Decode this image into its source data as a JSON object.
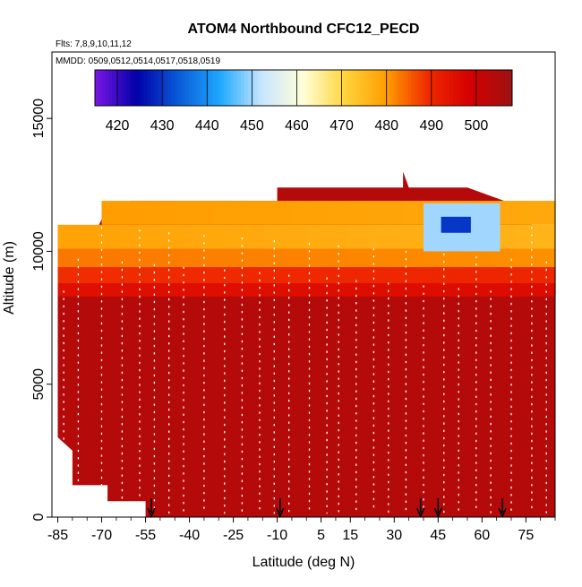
{
  "chart_data": {
    "type": "heatmap",
    "title": "ATOM4 Northbound CFC12_PECD",
    "flights_note": "Flts: 7,8,9,10,11,12",
    "dates_note": "MMDD: 0509,0512,0514,0517,0518,0519",
    "xlabel": "Latitude (deg N)",
    "ylabel": "Altitude (m)",
    "xlim": [
      -87,
      85
    ],
    "ylim": [
      0,
      17500
    ],
    "x_ticks": [
      -85,
      -70,
      -55,
      -40,
      -25,
      -10,
      5,
      15,
      30,
      45,
      60,
      75
    ],
    "y_ticks": [
      0,
      5000,
      10000,
      15000
    ],
    "colorbar": {
      "range": [
        415,
        508
      ],
      "ticks": [
        420,
        430,
        440,
        450,
        460,
        470,
        480,
        490,
        500
      ],
      "colors": [
        "#7b17e6",
        "#0000a8",
        "#0a5ad8",
        "#1ea8ff",
        "#c9e6ff",
        "#ffffd8",
        "#ffd43a",
        "#ff9c00",
        "#ef2800",
        "#d40000",
        "#9e1212"
      ]
    },
    "background_value": 504,
    "profile_markers_lat": [
      -53,
      -9,
      39,
      45,
      67
    ],
    "upper_layers": [
      {
        "x": [
          -70,
          85
        ],
        "y": [
          11000,
          11900
        ],
        "v": [
          480,
          478
        ]
      },
      {
        "x": [
          -85,
          85
        ],
        "y": [
          10100,
          11000
        ],
        "v": [
          479,
          476
        ]
      },
      {
        "x": [
          -85,
          85
        ],
        "y": [
          9400,
          10100
        ],
        "v": [
          483,
          481
        ]
      },
      {
        "x": [
          -85,
          85
        ],
        "y": [
          8800,
          9400
        ],
        "v": [
          489,
          490
        ]
      },
      {
        "x": [
          -85,
          85
        ],
        "y": [
          8300,
          8800
        ],
        "v": [
          495,
          496
        ]
      },
      {
        "x": [
          40,
          66
        ],
        "y": [
          10000,
          11800
        ],
        "v": [
          450,
          450
        ]
      },
      {
        "x": [
          46,
          56
        ],
        "y": [
          10700,
          11300
        ],
        "v": [
          430,
          430
        ]
      }
    ],
    "profiles_lat": [
      -83,
      -78,
      -70,
      -63,
      -57,
      -52,
      -47,
      -42,
      -35,
      -28,
      -22,
      -16,
      -11,
      -6,
      1,
      7,
      11,
      17,
      23,
      28,
      34,
      40,
      47,
      52,
      58,
      63,
      70,
      77,
      82
    ]
  }
}
